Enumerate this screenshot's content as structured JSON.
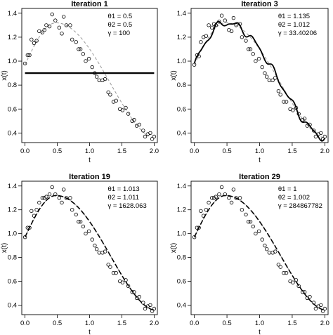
{
  "figure": {
    "background": "#ffffff",
    "point_color": "#000000",
    "true_curve_color": "#9a9a9a",
    "fit_curve_color": "#000000"
  },
  "chart_data": [
    {
      "type": "scatter",
      "title": "Iteration 1",
      "xlabel": "t",
      "ylabel": "x(t)",
      "xlim": [
        -0.05,
        2.05
      ],
      "ylim": [
        0.32,
        1.44
      ],
      "xticks": [
        "0.0",
        "0.5",
        "1.0",
        "1.5",
        "2.0"
      ],
      "yticks": [
        "0.4",
        "0.6",
        "0.8",
        "1.0",
        "1.2",
        "1.4"
      ],
      "params": [
        "θ1 = 0.5",
        "θ2 = 0.5",
        "γ = 100"
      ],
      "fit": {
        "style": "flat",
        "y": 0.9
      },
      "points": [
        [
          0,
          0.98
        ],
        [
          0.04,
          1.05
        ],
        [
          0.07,
          1.05
        ],
        [
          0.1,
          1.18
        ],
        [
          0.14,
          1.15
        ],
        [
          0.18,
          1.17
        ],
        [
          0.22,
          1.25
        ],
        [
          0.27,
          1.24
        ],
        [
          0.3,
          1.26
        ],
        [
          0.33,
          1.3
        ],
        [
          0.38,
          1.29
        ],
        [
          0.42,
          1.39
        ],
        [
          0.47,
          1.34
        ],
        [
          0.53,
          1.28
        ],
        [
          0.57,
          1.23
        ],
        [
          0.6,
          1.37
        ],
        [
          0.64,
          1.3
        ],
        [
          0.7,
          1.3
        ],
        [
          0.73,
          1.18
        ],
        [
          0.79,
          1.16
        ],
        [
          0.83,
          1.1
        ],
        [
          0.86,
          1.1
        ],
        [
          0.9,
          1.06
        ],
        [
          0.94,
          1.0
        ],
        [
          0.99,
          1.02
        ],
        [
          1.04,
          0.95
        ],
        [
          1.08,
          0.9
        ],
        [
          1.11,
          0.87
        ],
        [
          1.15,
          0.84
        ],
        [
          1.2,
          0.84
        ],
        [
          1.24,
          0.85
        ],
        [
          1.29,
          0.74
        ],
        [
          1.32,
          0.72
        ],
        [
          1.37,
          0.66
        ],
        [
          1.41,
          0.67
        ],
        [
          1.47,
          0.6
        ],
        [
          1.51,
          0.59
        ],
        [
          1.56,
          0.61
        ],
        [
          1.6,
          0.56
        ],
        [
          1.66,
          0.5
        ],
        [
          1.69,
          0.51
        ],
        [
          1.73,
          0.46
        ],
        [
          1.77,
          0.47
        ],
        [
          1.83,
          0.42
        ],
        [
          1.86,
          0.37
        ],
        [
          1.9,
          0.39
        ],
        [
          1.94,
          0.4
        ],
        [
          1.97,
          0.35
        ],
        [
          2.0,
          0.37
        ]
      ]
    },
    {
      "type": "scatter",
      "title": "Iteration 3",
      "xlabel": "t",
      "ylabel": "x(t)",
      "xlim": [
        -0.05,
        2.05
      ],
      "ylim": [
        0.32,
        1.44
      ],
      "xticks": [
        "0.0",
        "0.5",
        "1.0",
        "1.5",
        "2.0"
      ],
      "yticks": [
        "0.4",
        "0.6",
        "0.8",
        "1.0",
        "1.2",
        "1.4"
      ],
      "params": [
        "θ1 = 1.135",
        "θ2 = 1.012",
        "γ = 33.40206"
      ],
      "fit": {
        "style": "wiggly"
      },
      "points": [
        [
          0,
          0.97
        ],
        [
          0.04,
          1.05
        ],
        [
          0.07,
          1.04
        ],
        [
          0.1,
          1.16
        ],
        [
          0.14,
          1.2
        ],
        [
          0.18,
          1.21
        ],
        [
          0.22,
          1.3
        ],
        [
          0.27,
          1.28
        ],
        [
          0.3,
          1.31
        ],
        [
          0.33,
          1.3
        ],
        [
          0.38,
          1.33
        ],
        [
          0.42,
          1.38
        ],
        [
          0.47,
          1.34
        ],
        [
          0.53,
          1.26
        ],
        [
          0.57,
          1.25
        ],
        [
          0.6,
          1.36
        ],
        [
          0.64,
          1.3
        ],
        [
          0.7,
          1.31
        ],
        [
          0.73,
          1.2
        ],
        [
          0.79,
          1.17
        ],
        [
          0.83,
          1.1
        ],
        [
          0.86,
          1.1
        ],
        [
          0.9,
          1.06
        ],
        [
          0.94,
          1.0
        ],
        [
          0.99,
          1.02
        ],
        [
          1.04,
          0.95
        ],
        [
          1.08,
          0.9
        ],
        [
          1.11,
          0.87
        ],
        [
          1.15,
          0.84
        ],
        [
          1.2,
          0.84
        ],
        [
          1.24,
          0.86
        ],
        [
          1.29,
          0.75
        ],
        [
          1.32,
          0.72
        ],
        [
          1.37,
          0.66
        ],
        [
          1.41,
          0.66
        ],
        [
          1.47,
          0.6
        ],
        [
          1.51,
          0.59
        ],
        [
          1.56,
          0.61
        ],
        [
          1.6,
          0.56
        ],
        [
          1.66,
          0.51
        ],
        [
          1.69,
          0.52
        ],
        [
          1.73,
          0.46
        ],
        [
          1.77,
          0.47
        ],
        [
          1.83,
          0.42
        ],
        [
          1.86,
          0.37
        ],
        [
          1.9,
          0.39
        ],
        [
          1.94,
          0.4
        ],
        [
          1.97,
          0.35
        ],
        [
          2.0,
          0.37
        ]
      ]
    },
    {
      "type": "scatter",
      "title": "Iteration 19",
      "xlabel": "t",
      "ylabel": "x(t)",
      "xlim": [
        -0.05,
        2.05
      ],
      "ylim": [
        0.32,
        1.44
      ],
      "xticks": [
        "0.0",
        "0.5",
        "1.0",
        "1.5",
        "2.0"
      ],
      "yticks": [
        "0.4",
        "0.6",
        "0.8",
        "1.0",
        "1.2",
        "1.4"
      ],
      "params": [
        "θ1 = 1.013",
        "θ2 = 1.011",
        "γ = 1628.063"
      ],
      "fit": {
        "style": "smooth"
      },
      "points": [
        [
          0,
          0.97
        ],
        [
          0.04,
          1.05
        ],
        [
          0.07,
          1.05
        ],
        [
          0.1,
          1.19
        ],
        [
          0.14,
          1.15
        ],
        [
          0.18,
          1.2
        ],
        [
          0.22,
          1.26
        ],
        [
          0.27,
          1.3
        ],
        [
          0.3,
          1.3
        ],
        [
          0.33,
          1.31
        ],
        [
          0.38,
          1.33
        ],
        [
          0.42,
          1.39
        ],
        [
          0.47,
          1.33
        ],
        [
          0.53,
          1.3
        ],
        [
          0.57,
          1.26
        ],
        [
          0.6,
          1.37
        ],
        [
          0.64,
          1.3
        ],
        [
          0.7,
          1.3
        ],
        [
          0.73,
          1.2
        ],
        [
          0.79,
          1.16
        ],
        [
          0.83,
          1.1
        ],
        [
          0.86,
          1.1
        ],
        [
          0.9,
          1.06
        ],
        [
          0.94,
          1.0
        ],
        [
          0.99,
          1.02
        ],
        [
          1.04,
          0.95
        ],
        [
          1.08,
          0.9
        ],
        [
          1.11,
          0.87
        ],
        [
          1.15,
          0.84
        ],
        [
          1.2,
          0.84
        ],
        [
          1.24,
          0.85
        ],
        [
          1.29,
          0.74
        ],
        [
          1.32,
          0.72
        ],
        [
          1.37,
          0.67
        ],
        [
          1.41,
          0.67
        ],
        [
          1.47,
          0.6
        ],
        [
          1.51,
          0.59
        ],
        [
          1.56,
          0.61
        ],
        [
          1.6,
          0.56
        ],
        [
          1.66,
          0.51
        ],
        [
          1.69,
          0.51
        ],
        [
          1.73,
          0.46
        ],
        [
          1.77,
          0.47
        ],
        [
          1.83,
          0.42
        ],
        [
          1.86,
          0.37
        ],
        [
          1.9,
          0.39
        ],
        [
          1.94,
          0.4
        ],
        [
          1.97,
          0.35
        ],
        [
          2.0,
          0.37
        ]
      ]
    },
    {
      "type": "scatter",
      "title": "Iteration 29",
      "xlabel": "t",
      "ylabel": "x(t)",
      "xlim": [
        -0.05,
        2.05
      ],
      "ylim": [
        0.32,
        1.44
      ],
      "xticks": [
        "0.0",
        "0.5",
        "1.0",
        "1.5",
        "2.0"
      ],
      "yticks": [
        "0.4",
        "0.6",
        "0.8",
        "1.0",
        "1.2",
        "1.4"
      ],
      "params": [
        "θ1 = 1",
        "θ2 = 1.002",
        "γ = 284867782"
      ],
      "fit": {
        "style": "smooth"
      },
      "points": [
        [
          0,
          0.97
        ],
        [
          0.04,
          1.05
        ],
        [
          0.07,
          1.05
        ],
        [
          0.1,
          1.19
        ],
        [
          0.14,
          1.15
        ],
        [
          0.18,
          1.2
        ],
        [
          0.22,
          1.26
        ],
        [
          0.27,
          1.3
        ],
        [
          0.3,
          1.3
        ],
        [
          0.33,
          1.31
        ],
        [
          0.38,
          1.33
        ],
        [
          0.42,
          1.39
        ],
        [
          0.47,
          1.33
        ],
        [
          0.53,
          1.3
        ],
        [
          0.57,
          1.26
        ],
        [
          0.6,
          1.37
        ],
        [
          0.64,
          1.3
        ],
        [
          0.7,
          1.3
        ],
        [
          0.73,
          1.2
        ],
        [
          0.79,
          1.16
        ],
        [
          0.83,
          1.1
        ],
        [
          0.86,
          1.1
        ],
        [
          0.9,
          1.06
        ],
        [
          0.94,
          1.0
        ],
        [
          0.99,
          1.02
        ],
        [
          1.04,
          0.95
        ],
        [
          1.08,
          0.9
        ],
        [
          1.11,
          0.87
        ],
        [
          1.15,
          0.84
        ],
        [
          1.2,
          0.84
        ],
        [
          1.24,
          0.85
        ],
        [
          1.29,
          0.74
        ],
        [
          1.32,
          0.72
        ],
        [
          1.37,
          0.67
        ],
        [
          1.41,
          0.67
        ],
        [
          1.47,
          0.6
        ],
        [
          1.51,
          0.59
        ],
        [
          1.56,
          0.61
        ],
        [
          1.6,
          0.56
        ],
        [
          1.66,
          0.51
        ],
        [
          1.69,
          0.51
        ],
        [
          1.73,
          0.46
        ],
        [
          1.77,
          0.47
        ],
        [
          1.83,
          0.42
        ],
        [
          1.86,
          0.37
        ],
        [
          1.9,
          0.39
        ],
        [
          1.94,
          0.4
        ],
        [
          1.97,
          0.35
        ],
        [
          2.0,
          0.37
        ]
      ]
    }
  ]
}
